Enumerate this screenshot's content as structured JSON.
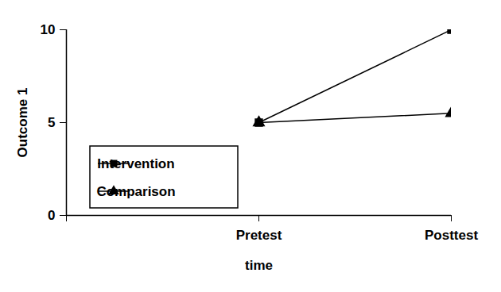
{
  "chart_data": {
    "type": "line",
    "x_label": "time",
    "y_label": "Outcome 1",
    "categories": [
      null,
      "Pretest",
      "Posttest"
    ],
    "series": [
      {
        "name": "Intervention",
        "color": "#000000",
        "marker": "square",
        "line_style": "solid",
        "values": [
          null,
          5,
          10
        ]
      },
      {
        "name": "Comparison",
        "color": "#000000",
        "marker": "triangle",
        "line_style": "solid",
        "values": [
          null,
          5,
          5.5
        ]
      }
    ],
    "ylim": [
      0,
      10
    ],
    "yticks": [
      0,
      5,
      10
    ],
    "legend": "lower left"
  }
}
